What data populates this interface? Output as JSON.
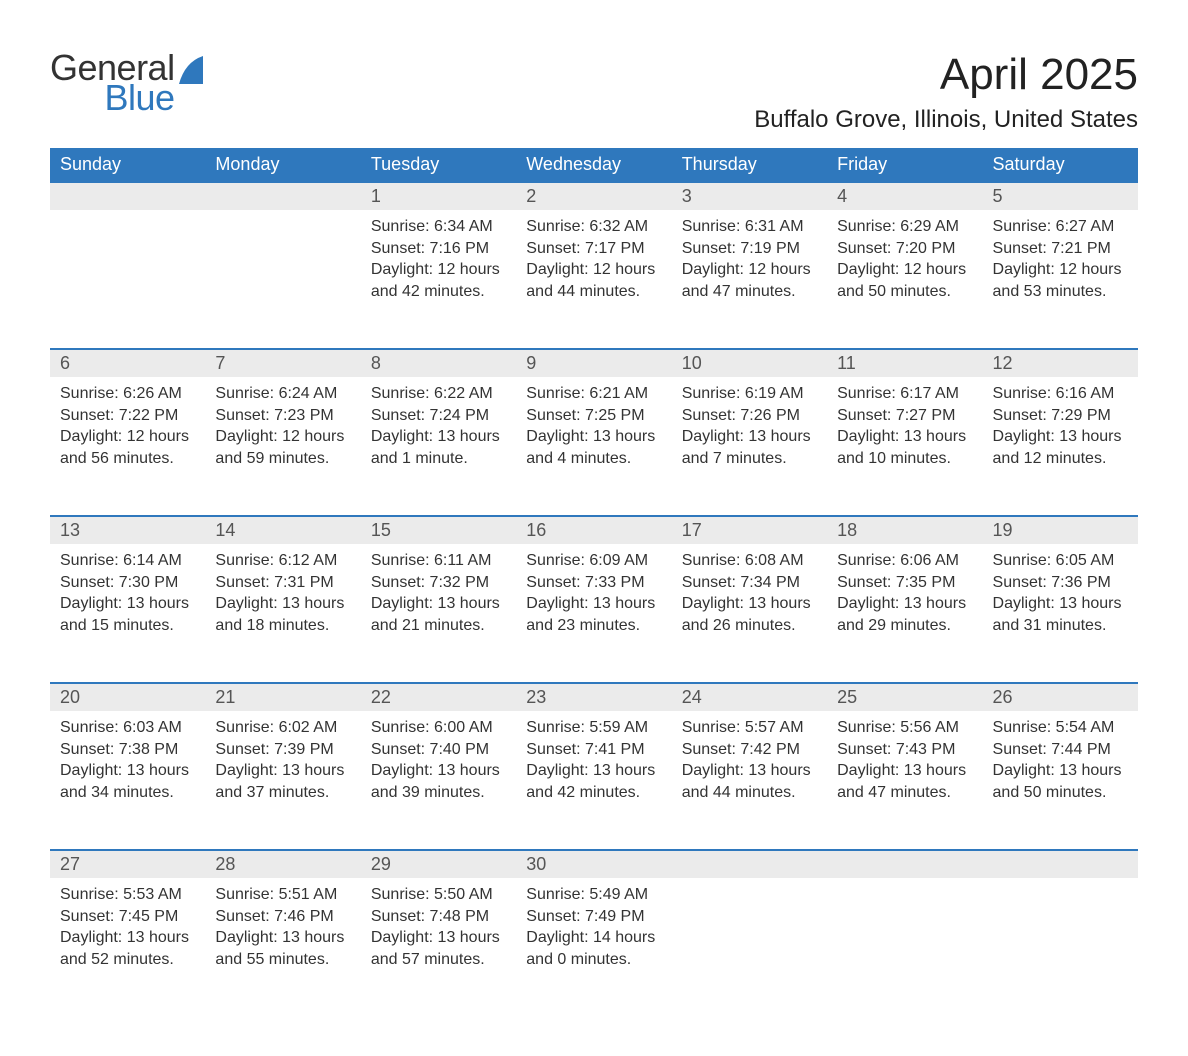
{
  "brand": {
    "line1": "General",
    "line2": "Blue",
    "icon_color": "#2f78bd"
  },
  "title": "April 2025",
  "location": "Buffalo Grove, Illinois, United States",
  "colors": {
    "header_bg": "#2f78bd",
    "header_text": "#ffffff",
    "daynum_bg": "#ebebeb",
    "daynum_border": "#2f78bd",
    "body_text": "#333333",
    "page_bg": "#ffffff"
  },
  "typography": {
    "title_fontsize": 44,
    "location_fontsize": 24,
    "dayheader_fontsize": 18,
    "daynum_fontsize": 18,
    "body_fontsize": 16,
    "font_family": "Arial"
  },
  "days_of_week": [
    "Sunday",
    "Monday",
    "Tuesday",
    "Wednesday",
    "Thursday",
    "Friday",
    "Saturday"
  ],
  "weeks": [
    [
      null,
      null,
      {
        "n": "1",
        "sr": "6:34 AM",
        "ss": "7:16 PM",
        "dl": "12 hours and 42 minutes."
      },
      {
        "n": "2",
        "sr": "6:32 AM",
        "ss": "7:17 PM",
        "dl": "12 hours and 44 minutes."
      },
      {
        "n": "3",
        "sr": "6:31 AM",
        "ss": "7:19 PM",
        "dl": "12 hours and 47 minutes."
      },
      {
        "n": "4",
        "sr": "6:29 AM",
        "ss": "7:20 PM",
        "dl": "12 hours and 50 minutes."
      },
      {
        "n": "5",
        "sr": "6:27 AM",
        "ss": "7:21 PM",
        "dl": "12 hours and 53 minutes."
      }
    ],
    [
      {
        "n": "6",
        "sr": "6:26 AM",
        "ss": "7:22 PM",
        "dl": "12 hours and 56 minutes."
      },
      {
        "n": "7",
        "sr": "6:24 AM",
        "ss": "7:23 PM",
        "dl": "12 hours and 59 minutes."
      },
      {
        "n": "8",
        "sr": "6:22 AM",
        "ss": "7:24 PM",
        "dl": "13 hours and 1 minute."
      },
      {
        "n": "9",
        "sr": "6:21 AM",
        "ss": "7:25 PM",
        "dl": "13 hours and 4 minutes."
      },
      {
        "n": "10",
        "sr": "6:19 AM",
        "ss": "7:26 PM",
        "dl": "13 hours and 7 minutes."
      },
      {
        "n": "11",
        "sr": "6:17 AM",
        "ss": "7:27 PM",
        "dl": "13 hours and 10 minutes."
      },
      {
        "n": "12",
        "sr": "6:16 AM",
        "ss": "7:29 PM",
        "dl": "13 hours and 12 minutes."
      }
    ],
    [
      {
        "n": "13",
        "sr": "6:14 AM",
        "ss": "7:30 PM",
        "dl": "13 hours and 15 minutes."
      },
      {
        "n": "14",
        "sr": "6:12 AM",
        "ss": "7:31 PM",
        "dl": "13 hours and 18 minutes."
      },
      {
        "n": "15",
        "sr": "6:11 AM",
        "ss": "7:32 PM",
        "dl": "13 hours and 21 minutes."
      },
      {
        "n": "16",
        "sr": "6:09 AM",
        "ss": "7:33 PM",
        "dl": "13 hours and 23 minutes."
      },
      {
        "n": "17",
        "sr": "6:08 AM",
        "ss": "7:34 PM",
        "dl": "13 hours and 26 minutes."
      },
      {
        "n": "18",
        "sr": "6:06 AM",
        "ss": "7:35 PM",
        "dl": "13 hours and 29 minutes."
      },
      {
        "n": "19",
        "sr": "6:05 AM",
        "ss": "7:36 PM",
        "dl": "13 hours and 31 minutes."
      }
    ],
    [
      {
        "n": "20",
        "sr": "6:03 AM",
        "ss": "7:38 PM",
        "dl": "13 hours and 34 minutes."
      },
      {
        "n": "21",
        "sr": "6:02 AM",
        "ss": "7:39 PM",
        "dl": "13 hours and 37 minutes."
      },
      {
        "n": "22",
        "sr": "6:00 AM",
        "ss": "7:40 PM",
        "dl": "13 hours and 39 minutes."
      },
      {
        "n": "23",
        "sr": "5:59 AM",
        "ss": "7:41 PM",
        "dl": "13 hours and 42 minutes."
      },
      {
        "n": "24",
        "sr": "5:57 AM",
        "ss": "7:42 PM",
        "dl": "13 hours and 44 minutes."
      },
      {
        "n": "25",
        "sr": "5:56 AM",
        "ss": "7:43 PM",
        "dl": "13 hours and 47 minutes."
      },
      {
        "n": "26",
        "sr": "5:54 AM",
        "ss": "7:44 PM",
        "dl": "13 hours and 50 minutes."
      }
    ],
    [
      {
        "n": "27",
        "sr": "5:53 AM",
        "ss": "7:45 PM",
        "dl": "13 hours and 52 minutes."
      },
      {
        "n": "28",
        "sr": "5:51 AM",
        "ss": "7:46 PM",
        "dl": "13 hours and 55 minutes."
      },
      {
        "n": "29",
        "sr": "5:50 AM",
        "ss": "7:48 PM",
        "dl": "13 hours and 57 minutes."
      },
      {
        "n": "30",
        "sr": "5:49 AM",
        "ss": "7:49 PM",
        "dl": "14 hours and 0 minutes."
      },
      null,
      null,
      null
    ]
  ],
  "labels": {
    "sunrise": "Sunrise: ",
    "sunset": "Sunset: ",
    "daylight": "Daylight: "
  }
}
